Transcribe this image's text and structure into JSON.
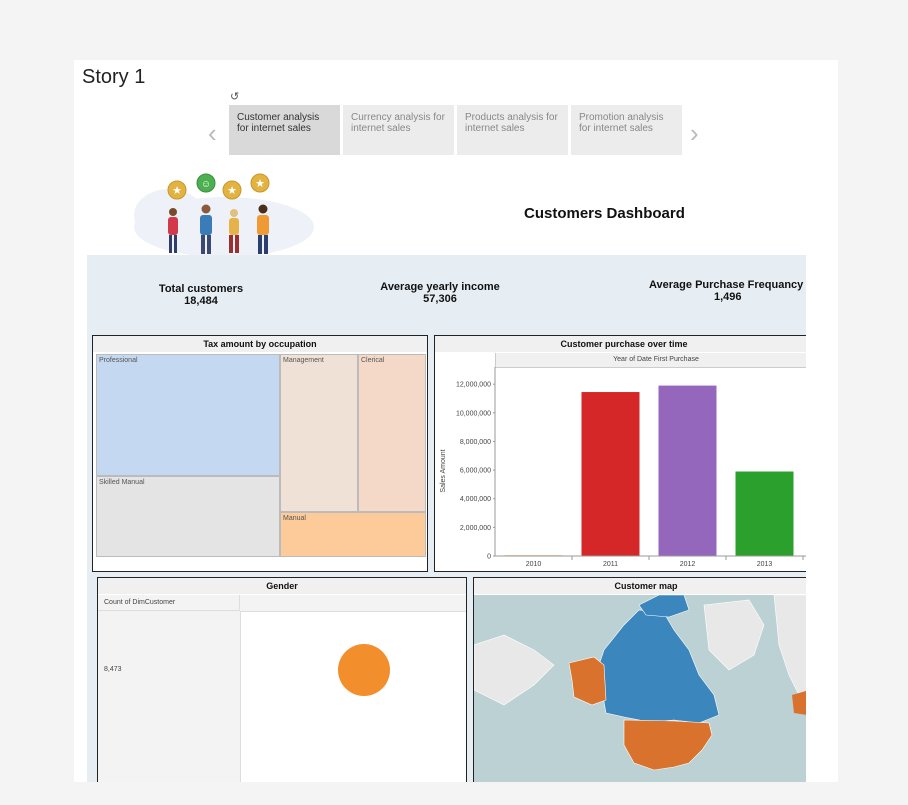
{
  "story": {
    "title": "Story 1"
  },
  "tabs": [
    {
      "label": "Customer analysis for internet sales",
      "active": true
    },
    {
      "label": "Currency analysis for internet sales",
      "active": false
    },
    {
      "label": "Products analysis for internet sales",
      "active": false
    },
    {
      "label": "Promotion analysis for internet sales",
      "active": false
    }
  ],
  "dashboard": {
    "title": "Customers Dashboard",
    "kpis": [
      {
        "label": "Total customers",
        "value": "18,484"
      },
      {
        "label": "Average yearly income",
        "value": "57,306"
      },
      {
        "label": "Average Purchase Frequancy",
        "value": "1,496"
      }
    ]
  },
  "treemap": {
    "title": "Tax amount by occupation",
    "cells": [
      "Professional",
      "Management",
      "Clerical",
      "Skilled Manual",
      "Manual"
    ],
    "colors": {
      "Professional": "#c5d8f2",
      "Management": "#f0e1d6",
      "Clerical": "#f5d9c8",
      "Skilled Manual": "#e4e4e4",
      "Manual": "#fdcb99"
    }
  },
  "chart_data": {
    "type": "bar",
    "title": "Customer purchase over time",
    "column_header": "Year of Date First Purchase",
    "ylabel": "Sales Amount",
    "categories": [
      "2010",
      "2011",
      "2012",
      "2013"
    ],
    "values": [
      50000,
      11450000,
      11900000,
      5900000
    ],
    "colors": [
      "#f28e2b",
      "#d62728",
      "#9467bd",
      "#2ca02c"
    ],
    "yticks": [
      "0",
      "2,000,000",
      "4,000,000",
      "6,000,000",
      "8,000,000",
      "10,000,000",
      "12,000,000"
    ],
    "ylim": [
      0,
      12500000
    ],
    "grid": false
  },
  "gender": {
    "title": "Gender",
    "column_header": "Count of DimCustomer",
    "row_value": "8,473",
    "circle_color": "#f28e2b"
  },
  "customer_map": {
    "title": "Customer map",
    "colors": {
      "water": "#bcd1d3",
      "land": "#e8e8e8",
      "canada": "#3b86bd",
      "usa": "#d9722c",
      "alaska": "#d9722c"
    }
  }
}
